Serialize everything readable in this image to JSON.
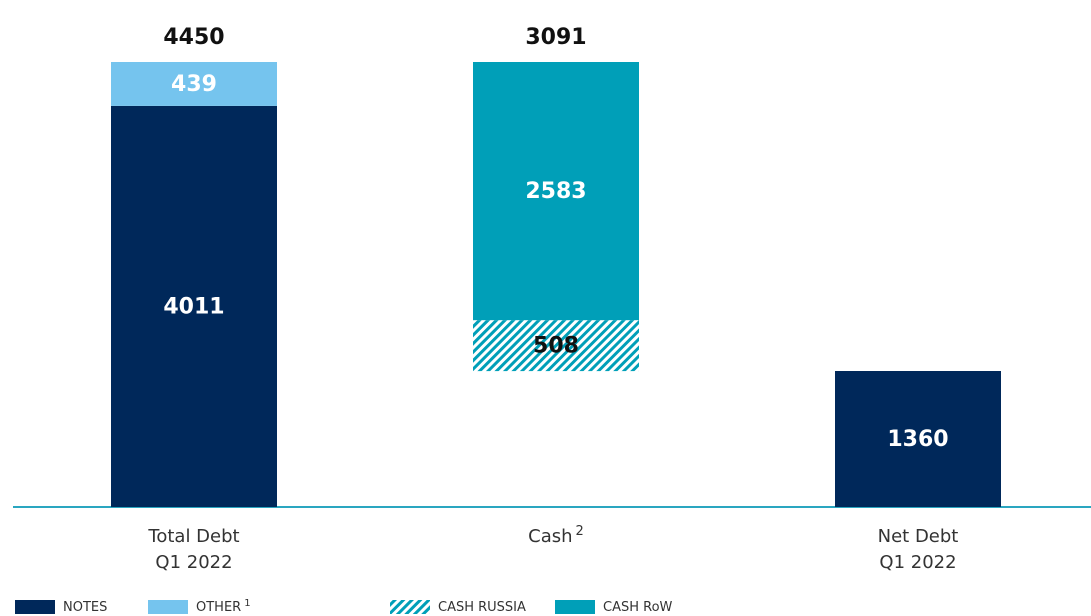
{
  "chart_data": {
    "type": "waterfall",
    "categories": [
      [
        "Total Debt",
        "Q1 2022"
      ],
      [
        "Cash"
      ],
      [
        "Net Debt",
        "Q1 2022"
      ]
    ],
    "category_notes": [
      null,
      "2",
      null
    ],
    "decrease": [
      false,
      true,
      false
    ],
    "series": [
      {
        "name": "NOTES",
        "color": "#00285a",
        "label_color": "#ffffff",
        "values": [
          4011,
          null,
          1360
        ]
      },
      {
        "name": "OTHER",
        "note": "1",
        "color": "#75c4ee",
        "label_color": "#ffffff",
        "values": [
          439,
          null,
          null
        ]
      },
      {
        "name": "CASH RUSSIA",
        "color": "#009fb8",
        "pattern": "hatch",
        "label_color": "#111111",
        "values": [
          null,
          508,
          null
        ]
      },
      {
        "name": "CASH RoW",
        "color": "#009fb8",
        "label_color": "#ffffff",
        "values": [
          null,
          2583,
          null
        ]
      }
    ],
    "totals": [
      4450,
      3091,
      null
    ]
  }
}
